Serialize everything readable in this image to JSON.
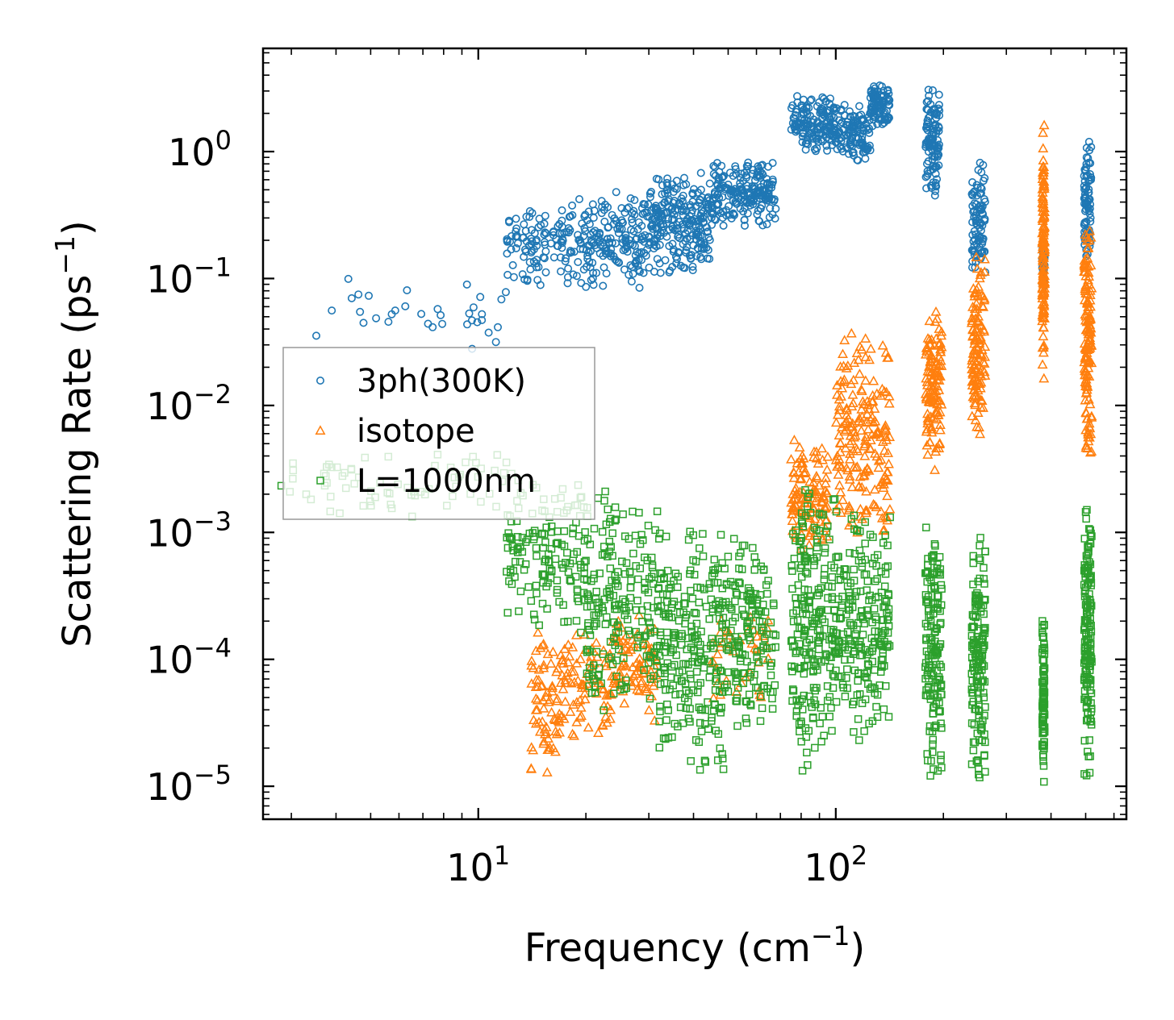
{
  "chart_data": {
    "type": "scatter",
    "title": "",
    "xlabel": "Frequency (cm",
    "xlabel_sup": "−1",
    "xlabel_close": ")",
    "ylabel": "Scattering Rate (ps",
    "ylabel_sup": "−1",
    "ylabel_close": ")",
    "xscale": "log",
    "yscale": "log",
    "xlim": [
      2.5,
      650
    ],
    "ylim": [
      5.5e-06,
      6.5
    ],
    "x_ticks": [
      {
        "value": 10,
        "base": "10",
        "exp": "1"
      },
      {
        "value": 100,
        "base": "10",
        "exp": "2"
      }
    ],
    "y_ticks": [
      {
        "value": 1,
        "base": "10",
        "exp": "0"
      },
      {
        "value": 0.1,
        "base": "10",
        "exp": "−1"
      },
      {
        "value": 0.01,
        "base": "10",
        "exp": "−2"
      },
      {
        "value": 0.001,
        "base": "10",
        "exp": "−3"
      },
      {
        "value": 0.0001,
        "base": "10",
        "exp": "−4"
      },
      {
        "value": 1e-05,
        "base": "10",
        "exp": "−5"
      }
    ],
    "legend": {
      "placement": "center-left"
    },
    "series": [
      {
        "name": "3ph(300K)",
        "marker": "circle",
        "color": "#1f77b4",
        "clusters": [
          {
            "x": [
              3.5,
              12
            ],
            "y": [
              0.02,
              0.15
            ],
            "n": 35
          },
          {
            "x": [
              12,
              20
            ],
            "y": [
              0.08,
              0.45
            ],
            "n": 130
          },
          {
            "x": [
              20,
              30
            ],
            "y": [
              0.08,
              0.5
            ],
            "n": 160
          },
          {
            "x": [
              30,
              45
            ],
            "y": [
              0.1,
              0.75
            ],
            "n": 240
          },
          {
            "x": [
              45,
              68
            ],
            "y": [
              0.25,
              0.9
            ],
            "n": 200
          },
          {
            "x": [
              75,
              100
            ],
            "y": [
              0.9,
              2.8
            ],
            "n": 150
          },
          {
            "x": [
              100,
              125
            ],
            "y": [
              0.8,
              2.5
            ],
            "n": 120
          },
          {
            "x": [
              125,
              142
            ],
            "y": [
              1.5,
              3.5
            ],
            "n": 90
          },
          {
            "x": [
              178,
              195
            ],
            "y": [
              0.4,
              3.5
            ],
            "n": 110
          },
          {
            "x": [
              240,
              262
            ],
            "y": [
              0.1,
              0.9
            ],
            "n": 90
          },
          {
            "x": [
              378,
              384
            ],
            "y": [
              0.08,
              0.2
            ],
            "n": 35
          },
          {
            "x": [
              495,
              518
            ],
            "y": [
              0.12,
              1.5
            ],
            "n": 80
          }
        ]
      },
      {
        "name": "isotope",
        "marker": "triangle",
        "color": "#ff7f0e",
        "clusters": [
          {
            "x": [
              14,
              17
            ],
            "y": [
              1e-05,
              0.0002
            ],
            "n": 70
          },
          {
            "x": [
              17,
              24
            ],
            "y": [
              2e-05,
              0.0002
            ],
            "n": 90
          },
          {
            "x": [
              24,
              32
            ],
            "y": [
              3e-05,
              0.00025
            ],
            "n": 80
          },
          {
            "x": [
              45,
              65
            ],
            "y": [
              4e-05,
              0.0003
            ],
            "n": 40
          },
          {
            "x": [
              75,
              95
            ],
            "y": [
              0.0006,
              0.006
            ],
            "n": 120
          },
          {
            "x": [
              100,
              142
            ],
            "y": [
              0.0008,
              0.04
            ],
            "n": 200
          },
          {
            "x": [
              178,
              198
            ],
            "y": [
              0.003,
              0.06
            ],
            "n": 120
          },
          {
            "x": [
              240,
              262
            ],
            "y": [
              0.005,
              0.2
            ],
            "n": 120
          },
          {
            "x": [
              378,
              384
            ],
            "y": [
              0.015,
              1.8
            ],
            "n": 130
          },
          {
            "x": [
              495,
              520
            ],
            "y": [
              0.002,
              0.35
            ],
            "n": 140
          }
        ]
      },
      {
        "name": "L=1000nm",
        "marker": "square",
        "color": "#2ca02c",
        "clusters": [
          {
            "x": [
              2.8,
              12
            ],
            "y": [
              0.0013,
              0.0045
            ],
            "n": 70
          },
          {
            "x": [
              12,
              20
            ],
            "y": [
              0.00015,
              0.003
            ],
            "n": 150
          },
          {
            "x": [
              20,
              32
            ],
            "y": [
              3e-05,
              0.0025
            ],
            "n": 200
          },
          {
            "x": [
              32,
              50
            ],
            "y": [
              1e-05,
              0.0015
            ],
            "n": 250
          },
          {
            "x": [
              50,
              68
            ],
            "y": [
              2e-05,
              0.0012
            ],
            "n": 150
          },
          {
            "x": [
              75,
              100
            ],
            "y": [
              1e-05,
              0.003
            ],
            "n": 220
          },
          {
            "x": [
              100,
              142
            ],
            "y": [
              2e-05,
              0.002
            ],
            "n": 220
          },
          {
            "x": [
              178,
              198
            ],
            "y": [
              1e-05,
              0.0016
            ],
            "n": 160
          },
          {
            "x": [
              240,
              262
            ],
            "y": [
              1e-05,
              0.001
            ],
            "n": 160
          },
          {
            "x": [
              378,
              384
            ],
            "y": [
              1e-05,
              0.00025
            ],
            "n": 90
          },
          {
            "x": [
              495,
              520
            ],
            "y": [
              1e-05,
              0.002
            ],
            "n": 160
          }
        ]
      }
    ]
  }
}
